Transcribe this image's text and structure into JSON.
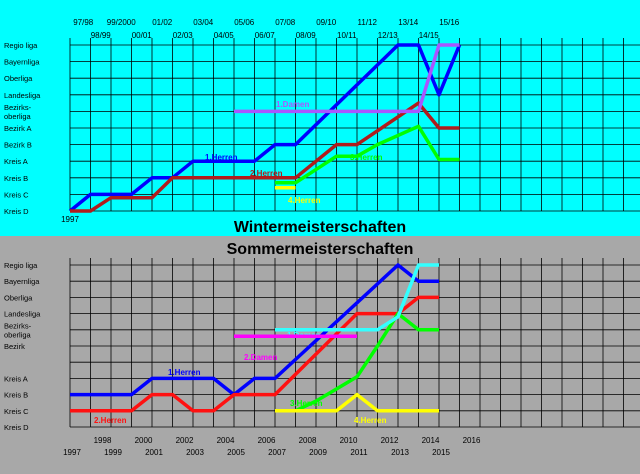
{
  "charts": [
    {
      "title": "Wintermeisterschaften",
      "background": "#00ffff",
      "levels": [
        "Regio liga",
        "Bayernliga",
        "Oberliga",
        "Landesliga",
        "Bezirks-\noberliga",
        "Bezirk A",
        "Bezirk B",
        "Kreis A",
        "Kreis B",
        "Kreis C",
        "Kreis D"
      ],
      "seasons_top_row": [
        "97/98",
        "99/2000",
        "01/02",
        "03/04",
        "05/06",
        "07/08",
        "09/10",
        "11/12",
        "13/14",
        "15/16"
      ],
      "seasons_second_row": [
        "98/99",
        "00/01",
        "02/03",
        "04/05",
        "06/07",
        "08/09",
        "10/11",
        "12/13",
        "14/15"
      ],
      "bottom_tick": "1997",
      "series": [
        {
          "name": "1.Herren",
          "color": "#0000ff",
          "points": [
            [
              1997,
              10
            ],
            [
              1998,
              9
            ],
            [
              2000,
              9
            ],
            [
              2001,
              8
            ],
            [
              2002,
              8
            ],
            [
              2003,
              7
            ],
            [
              2006,
              7
            ],
            [
              2007,
              6
            ],
            [
              2008,
              6
            ],
            [
              2013,
              0
            ],
            [
              2014,
              0
            ],
            [
              2015,
              3
            ],
            [
              2016,
              0
            ]
          ]
        },
        {
          "name": "2.Herren",
          "color": "#b01c1c",
          "points": [
            [
              1997,
              10
            ],
            [
              1998,
              10
            ],
            [
              1999,
              9.2
            ],
            [
              2001,
              9.2
            ],
            [
              2002,
              8
            ],
            [
              2007,
              8
            ],
            [
              2008,
              8
            ],
            [
              2010,
              6
            ],
            [
              2011,
              6
            ],
            [
              2014,
              3.5
            ],
            [
              2015,
              5
            ],
            [
              2016,
              5
            ]
          ]
        },
        {
          "name": "3.Herren",
          "color": "#00ff00",
          "points": [
            [
              2007,
              8.3
            ],
            [
              2008,
              8.3
            ],
            [
              2010,
              6.7
            ],
            [
              2011,
              6.7
            ],
            [
              2012,
              6
            ],
            [
              2014,
              4.9
            ],
            [
              2015,
              6.9
            ],
            [
              2016,
              6.9
            ]
          ]
        },
        {
          "name": "4.Herren",
          "color": "#ffff00",
          "points": [
            [
              2007,
              8.6
            ],
            [
              2008,
              8.6
            ]
          ]
        },
        {
          "name": "1.Damen",
          "color": "#aa55ff",
          "points": [
            [
              2005,
              4
            ],
            [
              2014,
              4
            ],
            [
              2015,
              0
            ],
            [
              2016,
              0
            ]
          ]
        }
      ]
    },
    {
      "title": "Sommermeisterschaften",
      "background": "#a8a8a8",
      "levels": [
        "Regio liga",
        "Bayernliga",
        "Oberliga",
        "Landesliga",
        "Bezirks-\noberliga",
        "Bezirk",
        "",
        "Kreis A",
        "Kreis B",
        "Kreis C",
        "Kreis D"
      ],
      "years_top_row": [
        "1998",
        "2000",
        "2002",
        "2004",
        "2006",
        "2008",
        "2010",
        "2012",
        "2014",
        "2016"
      ],
      "years_bottom_row": [
        "1997",
        "1999",
        "2001",
        "2003",
        "2005",
        "2007",
        "2009",
        "2011",
        "2013",
        "2015"
      ],
      "series": [
        {
          "name": "1.Herren",
          "color": "#0000ff",
          "points": [
            [
              1997,
              8
            ],
            [
              2000,
              8
            ],
            [
              2001,
              7
            ],
            [
              2004,
              7
            ],
            [
              2005,
              8
            ],
            [
              2006,
              7
            ],
            [
              2007,
              7
            ],
            [
              2013,
              0
            ],
            [
              2014,
              1
            ],
            [
              2015,
              1
            ]
          ]
        },
        {
          "name": "2.Herren",
          "color": "#ff1111",
          "points": [
            [
              1997,
              9
            ],
            [
              2000,
              9
            ],
            [
              2001,
              8
            ],
            [
              2002,
              8
            ],
            [
              2003,
              9
            ],
            [
              2004,
              9
            ],
            [
              2005,
              8
            ],
            [
              2007,
              8
            ],
            [
              2011,
              3
            ],
            [
              2013,
              3
            ],
            [
              2014,
              2
            ],
            [
              2015,
              2
            ]
          ]
        },
        {
          "name": "3.Herren",
          "color": "#00ff00",
          "points": [
            [
              2007,
              9
            ],
            [
              2008,
              9
            ],
            [
              2009,
              8.4
            ],
            [
              2011,
              6.9
            ],
            [
              2012,
              5
            ],
            [
              2013,
              3
            ],
            [
              2014,
              4
            ],
            [
              2015,
              4
            ]
          ]
        },
        {
          "name": "4.Herren",
          "color": "#ffff00",
          "points": [
            [
              2007,
              9
            ],
            [
              2010,
              9
            ],
            [
              2011,
              8
            ],
            [
              2012,
              9
            ],
            [
              2015,
              9
            ]
          ]
        },
        {
          "name": "1.Damen",
          "color": "#33ffff",
          "points": [
            [
              2007,
              4
            ],
            [
              2009,
              4
            ],
            [
              2012,
              4
            ],
            [
              2013,
              3.2
            ],
            [
              2014,
              0
            ],
            [
              2015,
              0
            ]
          ]
        },
        {
          "name": "2.Damen",
          "color": "#ff00ff",
          "points": [
            [
              2005,
              4.4
            ],
            [
              2011,
              4.4
            ]
          ]
        }
      ]
    }
  ]
}
